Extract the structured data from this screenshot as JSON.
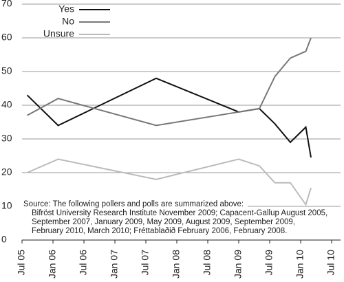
{
  "chart_data": {
    "type": "line",
    "x": [
      "2005-08",
      "2006-02",
      "2007-09",
      "2009-01",
      "2009-05",
      "2009-08",
      "2009-11",
      "2010-02",
      "2010-03"
    ],
    "series": [
      {
        "name": "Yes",
        "color": "#111111",
        "values": [
          43,
          34,
          48,
          38,
          39,
          34.5,
          29,
          33.5,
          24.5
        ]
      },
      {
        "name": "No",
        "color": "#777777",
        "values": [
          37,
          42,
          34,
          38,
          39,
          48.5,
          54,
          56,
          60
        ]
      },
      {
        "name": "Unsure",
        "color": "#bbbbbb",
        "values": [
          20,
          24,
          18,
          24,
          22,
          17,
          17,
          10.5,
          15.5
        ]
      }
    ],
    "xlim": [
      "2005-07",
      "2010-07"
    ],
    "xticks": [
      {
        "value": "2005-07",
        "label": "Jul 05"
      },
      {
        "value": "2006-01",
        "label": "Jan 06"
      },
      {
        "value": "2006-07",
        "label": "Jul 06"
      },
      {
        "value": "2007-01",
        "label": "Jan 07"
      },
      {
        "value": "2007-07",
        "label": "Jul 07"
      },
      {
        "value": "2008-01",
        "label": "Jan 08"
      },
      {
        "value": "2008-07",
        "label": "Jul 08"
      },
      {
        "value": "2009-01",
        "label": "Jan 09"
      },
      {
        "value": "2009-07",
        "label": "Jul 09"
      },
      {
        "value": "2010-01",
        "label": "Jan 10"
      },
      {
        "value": "2010-07",
        "label": "Jul 10"
      }
    ],
    "ylim": [
      0,
      70
    ],
    "yticks": [
      0,
      10,
      20,
      30,
      40,
      50,
      60,
      70
    ],
    "grid": true,
    "legend": "upper left",
    "annotation": [
      "Source: The following pollers and polls are summarized above:",
      "Bifröst University Research Institute November 2009; Capacent-Gallup August 2005,",
      "September 2007, January 2009, May 2009, August 2009, September 2009,",
      "February 2010, March 2010; Fréttablaðið February 2006, February 2008."
    ]
  }
}
